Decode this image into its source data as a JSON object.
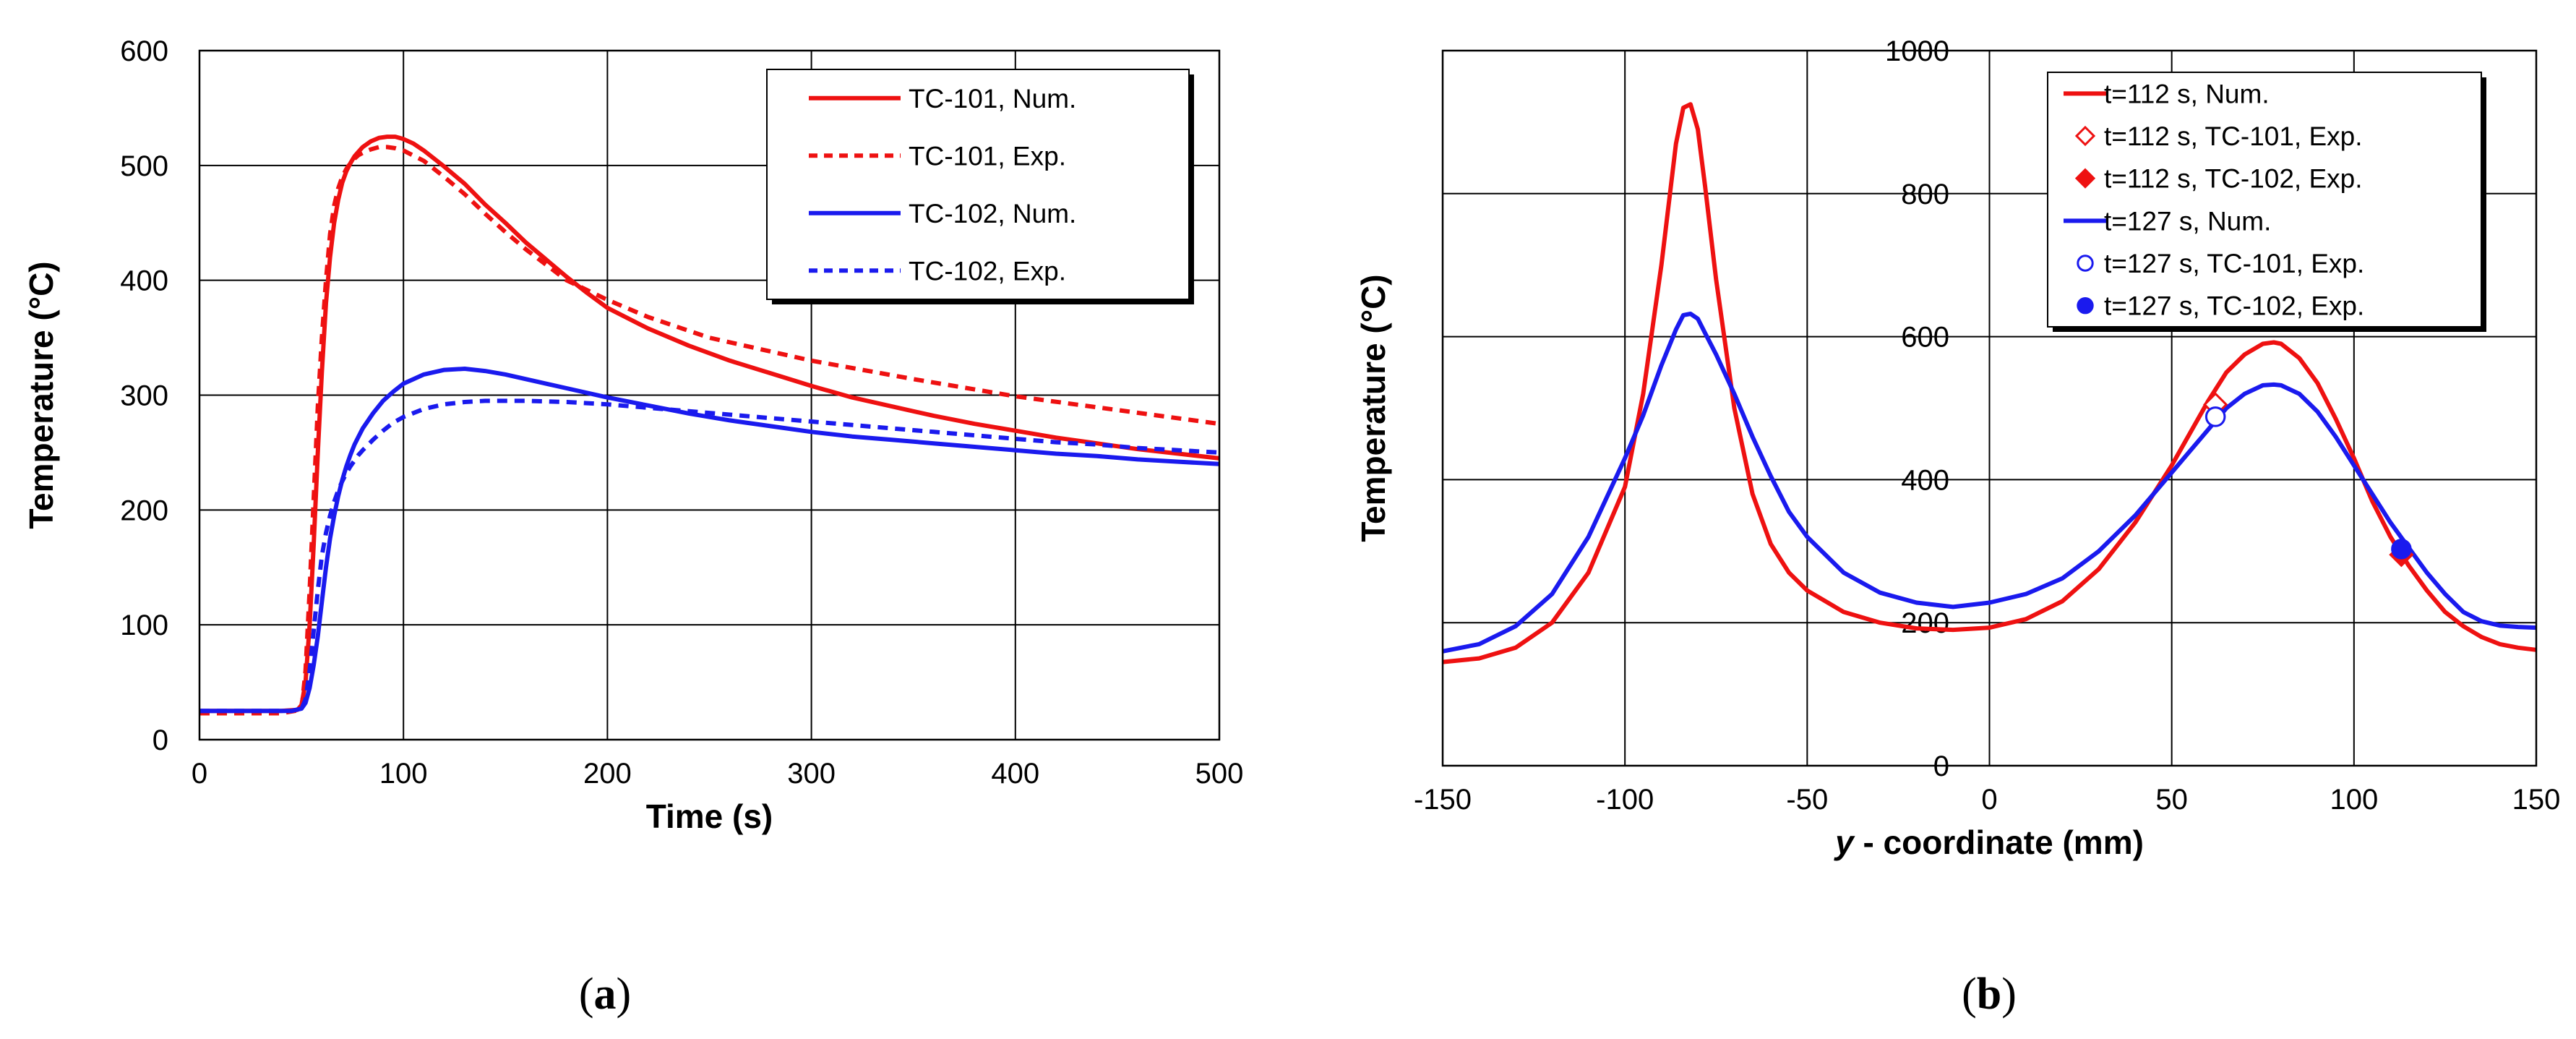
{
  "chart_data": [
    {
      "panel": "(a)",
      "type": "line",
      "xlabel": "Time (s)",
      "ylabel": "Temperature (°C)",
      "xlim": [
        0,
        500
      ],
      "ylim": [
        0,
        600
      ],
      "xticks": [
        0,
        100,
        200,
        300,
        400,
        500
      ],
      "yticks": [
        0,
        100,
        200,
        300,
        400,
        500,
        600
      ],
      "grid": true,
      "legend_position": "top-right",
      "series": [
        {
          "name": "TC-101, Num.",
          "color": "#ee1111",
          "style": "solid",
          "x": [
            0,
            40,
            48,
            50,
            52,
            54,
            56,
            58,
            60,
            62,
            64,
            66,
            68,
            70,
            72,
            74,
            76,
            78,
            80,
            84,
            88,
            92,
            96,
            100,
            105,
            110,
            120,
            130,
            140,
            150,
            160,
            170,
            180,
            190,
            200,
            220,
            240,
            260,
            280,
            300,
            320,
            340,
            360,
            380,
            400,
            420,
            440,
            460,
            480,
            500
          ],
          "y": [
            25,
            25,
            26,
            30,
            50,
            100,
            170,
            250,
            320,
            380,
            420,
            450,
            470,
            485,
            495,
            502,
            508,
            512,
            516,
            521,
            524,
            525,
            525,
            523,
            519,
            513,
            499,
            484,
            466,
            450,
            433,
            418,
            403,
            389,
            376,
            358,
            343,
            330,
            319,
            308,
            298,
            290,
            282,
            275,
            269,
            263,
            258,
            253,
            249,
            245
          ]
        },
        {
          "name": "TC-101, Exp.",
          "color": "#ee1111",
          "style": "dashed",
          "x": [
            0,
            40,
            50,
            52,
            54,
            56,
            58,
            60,
            62,
            64,
            66,
            68,
            70,
            72,
            74,
            76,
            78,
            80,
            84,
            88,
            92,
            96,
            100,
            110,
            120,
            130,
            140,
            150,
            160,
            180,
            200,
            220,
            250,
            300,
            350,
            400,
            450,
            500
          ],
          "y": [
            23,
            23,
            26,
            60,
            130,
            210,
            290,
            350,
            400,
            440,
            465,
            480,
            490,
            497,
            502,
            506,
            509,
            511,
            514,
            516,
            516,
            515,
            513,
            504,
            490,
            475,
            458,
            442,
            427,
            400,
            383,
            368,
            350,
            330,
            314,
            299,
            287,
            275
          ]
        },
        {
          "name": "TC-102, Num.",
          "color": "#1a1aee",
          "style": "solid",
          "x": [
            0,
            45,
            50,
            52,
            54,
            56,
            58,
            60,
            62,
            64,
            66,
            68,
            70,
            72,
            74,
            76,
            78,
            80,
            85,
            90,
            95,
            100,
            110,
            120,
            130,
            140,
            150,
            160,
            180,
            200,
            220,
            240,
            260,
            280,
            300,
            320,
            340,
            360,
            380,
            400,
            420,
            440,
            460,
            480,
            500
          ],
          "y": [
            25,
            25,
            27,
            32,
            45,
            65,
            90,
            120,
            150,
            175,
            195,
            212,
            226,
            238,
            248,
            257,
            264,
            271,
            284,
            295,
            303,
            310,
            318,
            322,
            323,
            321,
            318,
            314,
            306,
            298,
            291,
            284,
            278,
            273,
            268,
            264,
            261,
            258,
            255,
            252,
            249,
            247,
            244,
            242,
            240
          ]
        },
        {
          "name": "TC-102, Exp.",
          "color": "#1a1aee",
          "style": "dashed",
          "x": [
            0,
            45,
            50,
            52,
            54,
            56,
            58,
            60,
            62,
            64,
            66,
            68,
            70,
            72,
            74,
            76,
            78,
            80,
            85,
            90,
            95,
            100,
            110,
            120,
            130,
            140,
            150,
            160,
            180,
            200,
            220,
            240,
            260,
            280,
            300,
            320,
            340,
            360,
            380,
            400,
            420,
            440,
            460,
            480,
            500
          ],
          "y": [
            25,
            25,
            27,
            35,
            60,
            95,
            130,
            160,
            180,
            195,
            207,
            217,
            225,
            232,
            238,
            243,
            248,
            252,
            261,
            269,
            276,
            281,
            288,
            292,
            294,
            295,
            295,
            295,
            294,
            292,
            289,
            286,
            283,
            280,
            277,
            274,
            271,
            268,
            265,
            262,
            259,
            257,
            254,
            252,
            250
          ]
        }
      ]
    },
    {
      "panel": "(b)",
      "type": "line",
      "xlabel_italic": "y",
      "xlabel": " - coordinate (mm)",
      "ylabel": "Temperature (°C)",
      "xlim": [
        -150,
        150
      ],
      "ylim": [
        0,
        1000
      ],
      "xticks": [
        -150,
        -100,
        -50,
        0,
        50,
        100,
        150
      ],
      "yticks": [
        0,
        200,
        400,
        600,
        800,
        1000
      ],
      "grid": true,
      "legend_position": "top-right",
      "series": [
        {
          "name": "t=112 s, Num.",
          "color": "#ee1111",
          "style": "solid",
          "x": [
            -150,
            -140,
            -130,
            -120,
            -110,
            -100,
            -95,
            -90,
            -86,
            -84,
            -82,
            -80,
            -78,
            -75,
            -70,
            -65,
            -60,
            -55,
            -50,
            -40,
            -30,
            -20,
            -10,
            0,
            10,
            20,
            30,
            40,
            50,
            55,
            60,
            65,
            70,
            75,
            78,
            80,
            85,
            90,
            95,
            100,
            105,
            110,
            115,
            120,
            125,
            130,
            135,
            140,
            145,
            150
          ],
          "y": [
            145,
            150,
            165,
            200,
            270,
            390,
            520,
            700,
            870,
            920,
            925,
            890,
            810,
            680,
            500,
            380,
            310,
            270,
            245,
            215,
            200,
            192,
            190,
            193,
            205,
            230,
            275,
            340,
            420,
            465,
            510,
            550,
            575,
            590,
            592,
            590,
            570,
            535,
            485,
            430,
            370,
            320,
            280,
            245,
            215,
            195,
            180,
            170,
            165,
            162
          ]
        },
        {
          "name": "t=127 s, Num.",
          "color": "#1a1aee",
          "style": "solid",
          "x": [
            -150,
            -140,
            -130,
            -120,
            -110,
            -100,
            -95,
            -90,
            -86,
            -84,
            -82,
            -80,
            -78,
            -75,
            -70,
            -65,
            -60,
            -55,
            -50,
            -40,
            -30,
            -20,
            -10,
            0,
            10,
            20,
            30,
            40,
            50,
            55,
            60,
            65,
            70,
            75,
            78,
            80,
            85,
            90,
            95,
            100,
            105,
            110,
            115,
            120,
            125,
            130,
            135,
            140,
            145,
            150
          ],
          "y": [
            160,
            170,
            195,
            240,
            320,
            430,
            490,
            560,
            610,
            630,
            632,
            625,
            605,
            575,
            520,
            460,
            405,
            355,
            320,
            270,
            242,
            228,
            222,
            228,
            240,
            262,
            300,
            350,
            410,
            440,
            470,
            500,
            520,
            532,
            533,
            532,
            520,
            495,
            460,
            420,
            380,
            340,
            305,
            270,
            240,
            215,
            202,
            196,
            194,
            193
          ]
        },
        {
          "name": "t=112 s, TC-101, Exp.",
          "color": "#ee1111",
          "marker": "open-diamond",
          "x": [
            62
          ],
          "y": [
            505
          ]
        },
        {
          "name": "t=112 s, TC-102, Exp.",
          "color": "#ee1111",
          "marker": "filled-diamond",
          "x": [
            113
          ],
          "y": [
            295
          ]
        },
        {
          "name": "t=127 s, TC-101, Exp.",
          "color": "#1a1aee",
          "marker": "open-circle",
          "x": [
            62
          ],
          "y": [
            488
          ]
        },
        {
          "name": "t=127 s, TC-102, Exp.",
          "color": "#1a1aee",
          "marker": "filled-circle",
          "x": [
            113
          ],
          "y": [
            303
          ]
        }
      ],
      "legend_order": [
        0,
        2,
        3,
        1,
        4,
        5
      ]
    }
  ],
  "captions": {
    "a": "a",
    "b": "b"
  }
}
